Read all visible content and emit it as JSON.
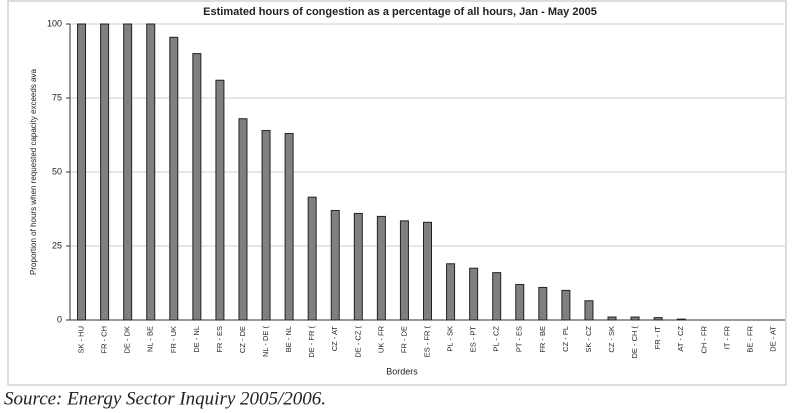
{
  "chart_data": {
    "type": "bar",
    "title": "Estimated hours of congestion as a percentage of all hours, Jan - May 2005",
    "x_label": "Borders",
    "y_label": "Proportion of hours when requested capacity exceeds ava",
    "categories": [
      "SK - HU",
      "FR - CH",
      "DE - DK",
      "NL - BE",
      "FR - UK",
      "DE - NL",
      "FR - ES",
      "CZ - DE",
      "NL - DE (",
      "BE - NL",
      "DE - FR (",
      "CZ - AT",
      "DE - CZ (",
      "UK - FR",
      "FR - DE",
      "ES - FR (",
      "PL - SK",
      "ES - PT",
      "PL - CZ",
      "PT - ES",
      "FR - BE",
      "CZ - PL",
      "SK - CZ",
      "CZ - SK",
      "DE - CH (",
      "FR - IT",
      "AT - CZ",
      "CH - FR",
      "IT - FR",
      "BE - FR",
      "DE - AT"
    ],
    "values": [
      100,
      100,
      100,
      100,
      95.5,
      90,
      81,
      68,
      64,
      63,
      41.5,
      37,
      36,
      35,
      33.5,
      33,
      19,
      17.5,
      16,
      12,
      11,
      10,
      6.5,
      1,
      1,
      0.8,
      0.3,
      0,
      0,
      0,
      0
    ],
    "color": "#808080",
    "ylim": [
      0,
      100
    ],
    "yticks": [
      0,
      25,
      50,
      75,
      100
    ],
    "grid": true
  },
  "source": "Source: Energy Sector Inquiry 2005/2006."
}
